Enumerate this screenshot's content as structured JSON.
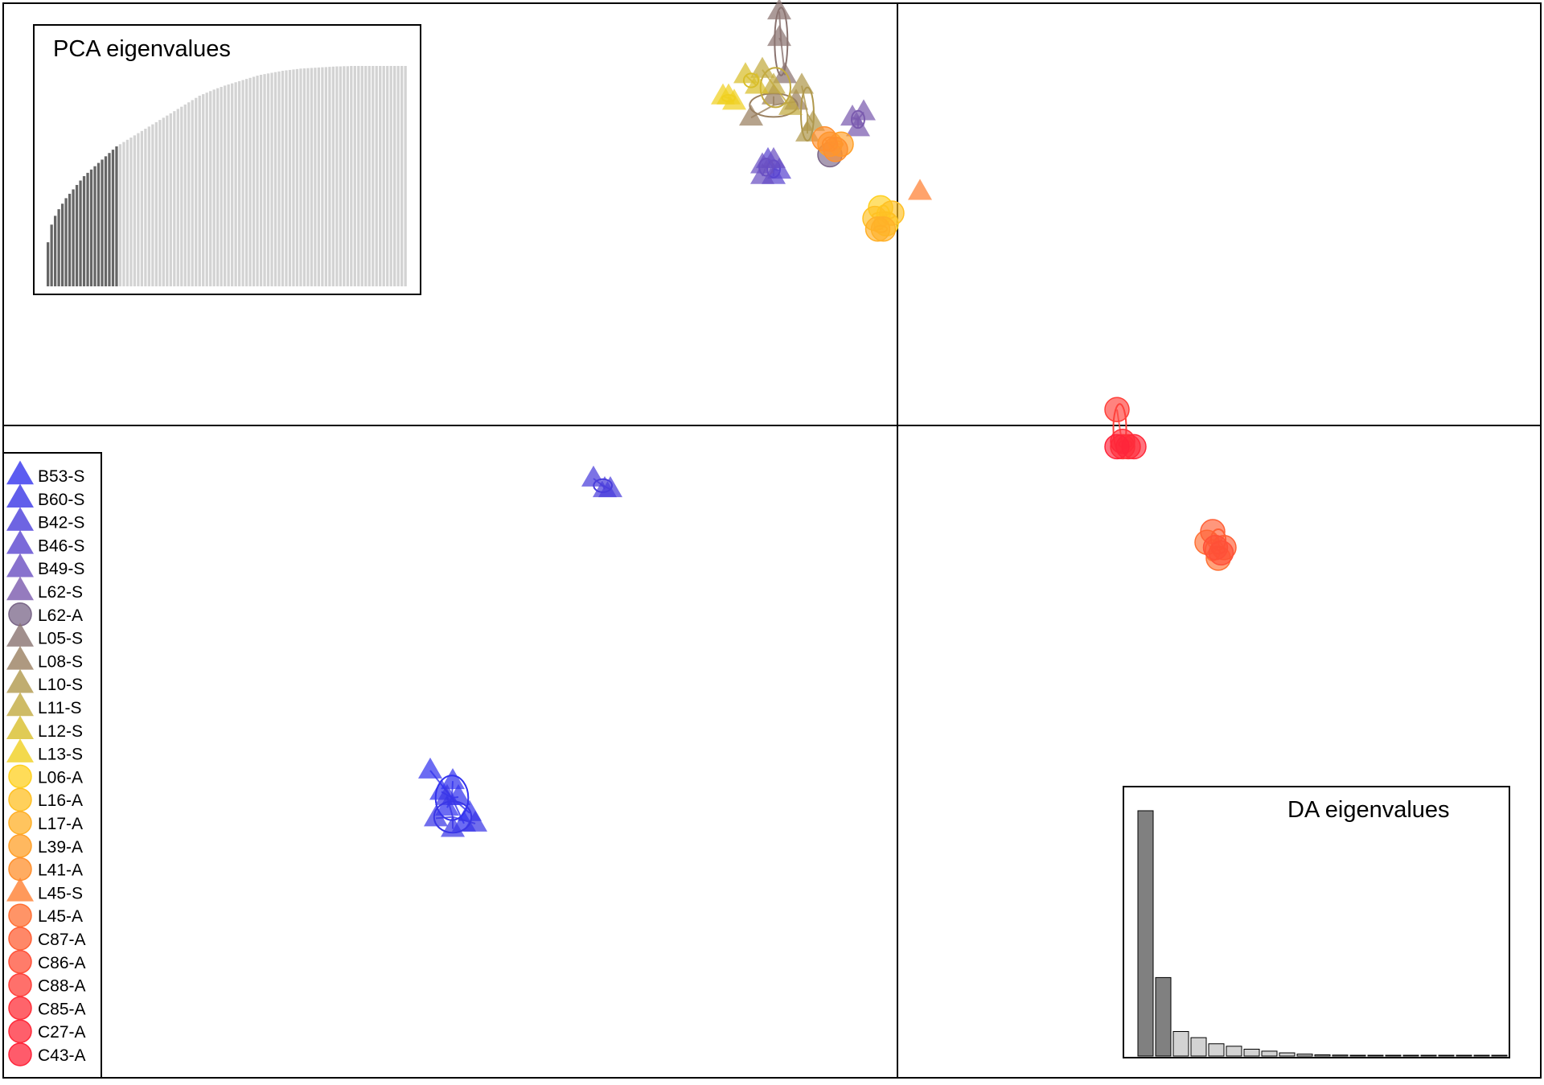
{
  "chart_data": {
    "type": "scatter",
    "description_free": true,
    "pca_inset": {
      "title": "PCA eigenvalues",
      "type": "bar",
      "retained": 20,
      "values": [
        0.2,
        0.28,
        0.32,
        0.35,
        0.375,
        0.4,
        0.42,
        0.44,
        0.46,
        0.48,
        0.5,
        0.515,
        0.53,
        0.545,
        0.56,
        0.575,
        0.59,
        0.605,
        0.62,
        0.635,
        0.645,
        0.655,
        0.665,
        0.675,
        0.685,
        0.695,
        0.705,
        0.715,
        0.725,
        0.735,
        0.745,
        0.755,
        0.765,
        0.775,
        0.785,
        0.795,
        0.805,
        0.815,
        0.825,
        0.835,
        0.845,
        0.855,
        0.865,
        0.872,
        0.879,
        0.886,
        0.893,
        0.899,
        0.905,
        0.911,
        0.916,
        0.921,
        0.926,
        0.931,
        0.936,
        0.941,
        0.946,
        0.951,
        0.956,
        0.96,
        0.963,
        0.966,
        0.969,
        0.972,
        0.975,
        0.978,
        0.98,
        0.982,
        0.984,
        0.986,
        0.988,
        0.989,
        0.99,
        0.991,
        0.992,
        0.993,
        0.994,
        0.995,
        0.996,
        0.997,
        0.998,
        0.998,
        0.999,
        0.999,
        1.0,
        1.0,
        1.0,
        1.0,
        1.0,
        1.0,
        1.0,
        1.0,
        1.0,
        1.0,
        1.0,
        1.0,
        1.0,
        1.0,
        1.0,
        1.0
      ]
    },
    "da_inset": {
      "title": "DA eigenvalues",
      "type": "bar",
      "retained": 2,
      "values": [
        1.0,
        0.32,
        0.1,
        0.075,
        0.05,
        0.04,
        0.028,
        0.02,
        0.013,
        0.008,
        0.005,
        0.004,
        0.003,
        0.002,
        0.0015,
        0.001,
        0.0008,
        0.0006,
        0.0004,
        0.0003,
        0.0002
      ]
    },
    "axes": {
      "x_range": [
        -1,
        1
      ],
      "y_range": [
        -1,
        1
      ],
      "origin_lines": true
    },
    "legend": {
      "placement": "left",
      "entries": [
        {
          "label": "B53-S",
          "color": "#3333ee",
          "shape": "triangle"
        },
        {
          "label": "B60-S",
          "color": "#3a36e6",
          "shape": "triangle"
        },
        {
          "label": "B42-S",
          "color": "#4a3ddb",
          "shape": "triangle"
        },
        {
          "label": "B46-S",
          "color": "#5a45d0",
          "shape": "triangle"
        },
        {
          "label": "B49-S",
          "color": "#6a4fc2",
          "shape": "triangle"
        },
        {
          "label": "L62-S",
          "color": "#7a5aae",
          "shape": "triangle"
        },
        {
          "label": "L62-A",
          "color": "#7a6688",
          "shape": "circle"
        },
        {
          "label": "L05-S",
          "color": "#8a7370",
          "shape": "triangle"
        },
        {
          "label": "L08-S",
          "color": "#9a8060",
          "shape": "triangle"
        },
        {
          "label": "L10-S",
          "color": "#b0984c",
          "shape": "triangle"
        },
        {
          "label": "L11-S",
          "color": "#c2aa40",
          "shape": "triangle"
        },
        {
          "label": "L12-S",
          "color": "#d8be2a",
          "shape": "triangle"
        },
        {
          "label": "L13-S",
          "color": "#f0d020",
          "shape": "triangle"
        },
        {
          "label": "L06-A",
          "color": "#ffd020",
          "shape": "circle"
        },
        {
          "label": "L16-A",
          "color": "#ffc024",
          "shape": "circle"
        },
        {
          "label": "L17-A",
          "color": "#ffb028",
          "shape": "circle"
        },
        {
          "label": "L39-A",
          "color": "#ffa02a",
          "shape": "circle"
        },
        {
          "label": "L41-A",
          "color": "#ff902e",
          "shape": "circle"
        },
        {
          "label": "L45-S",
          "color": "#ff8032",
          "shape": "triangle"
        },
        {
          "label": "L45-A",
          "color": "#ff7034",
          "shape": "circle"
        },
        {
          "label": "C87-A",
          "color": "#ff6036",
          "shape": "circle"
        },
        {
          "label": "C86-A",
          "color": "#ff5038",
          "shape": "circle"
        },
        {
          "label": "C88-A",
          "color": "#ff403a",
          "shape": "circle"
        },
        {
          "label": "C85-A",
          "color": "#ff303a",
          "shape": "circle"
        },
        {
          "label": "C27-A",
          "color": "#ff2a3a",
          "shape": "circle"
        },
        {
          "label": "C43-A",
          "color": "#ff243a",
          "shape": "circle"
        }
      ]
    },
    "series": [
      {
        "group": "B53-S",
        "color": "#3333ee",
        "shape": "triangle",
        "points": [
          [
            -0.83,
            -0.65
          ],
          [
            -0.81,
            -0.69
          ],
          [
            -0.8,
            -0.72
          ],
          [
            -0.78,
            -0.7
          ],
          [
            -0.77,
            -0.75
          ],
          [
            -0.76,
            -0.73
          ],
          [
            -0.79,
            -0.67
          ]
        ]
      },
      {
        "group": "B60-S",
        "color": "#3a36e6",
        "shape": "triangle",
        "points": [
          [
            -0.82,
            -0.74
          ],
          [
            -0.79,
            -0.76
          ],
          [
            -0.75,
            -0.75
          ],
          [
            -0.8,
            -0.7
          ]
        ]
      },
      {
        "group": "B42-S",
        "color": "#4a3ddb",
        "shape": "triangle",
        "points": [
          [
            -0.54,
            -0.1
          ],
          [
            -0.52,
            -0.12
          ],
          [
            -0.51,
            -0.12
          ]
        ]
      },
      {
        "group": "B46-S",
        "color": "#5a45d0",
        "shape": "triangle",
        "points": [
          [
            -0.23,
            0.5
          ],
          [
            -0.22,
            0.47
          ],
          [
            -0.21,
            0.48
          ]
        ]
      },
      {
        "group": "B49-S",
        "color": "#6a4fc2",
        "shape": "triangle",
        "points": [
          [
            -0.24,
            0.49
          ],
          [
            -0.22,
            0.5
          ],
          [
            -0.24,
            0.47
          ]
        ]
      },
      {
        "group": "L62-S",
        "color": "#7a5aae",
        "shape": "triangle",
        "points": [
          [
            -0.07,
            0.56
          ],
          [
            -0.06,
            0.59
          ],
          [
            -0.08,
            0.58
          ]
        ]
      },
      {
        "group": "L62-A",
        "color": "#7a6688",
        "shape": "circle",
        "points": [
          [
            -0.12,
            0.51
          ]
        ]
      },
      {
        "group": "L05-S",
        "color": "#8a7370",
        "shape": "triangle",
        "points": [
          [
            -0.21,
            0.78
          ],
          [
            -0.21,
            0.73
          ],
          [
            -0.2,
            0.66
          ]
        ]
      },
      {
        "group": "L08-S",
        "color": "#9a8060",
        "shape": "triangle",
        "points": [
          [
            -0.26,
            0.58
          ],
          [
            -0.22,
            0.62
          ],
          [
            -0.18,
            0.61
          ]
        ]
      },
      {
        "group": "L10-S",
        "color": "#b0984c",
        "shape": "triangle",
        "points": [
          [
            -0.17,
            0.64
          ],
          [
            -0.15,
            0.57
          ],
          [
            -0.16,
            0.55
          ]
        ]
      },
      {
        "group": "L11-S",
        "color": "#c2aa40",
        "shape": "triangle",
        "points": [
          [
            -0.24,
            0.67
          ],
          [
            -0.22,
            0.64
          ],
          [
            -0.19,
            0.6
          ]
        ]
      },
      {
        "group": "L12-S",
        "color": "#d8be2a",
        "shape": "triangle",
        "points": [
          [
            -0.27,
            0.66
          ],
          [
            -0.25,
            0.64
          ]
        ]
      },
      {
        "group": "L13-S",
        "color": "#f0d020",
        "shape": "triangle",
        "points": [
          [
            -0.31,
            0.62
          ],
          [
            -0.3,
            0.62
          ],
          [
            -0.29,
            0.61
          ]
        ]
      },
      {
        "group": "L06-A",
        "color": "#ffd020",
        "shape": "circle",
        "points": [
          [
            -0.03,
            0.41
          ],
          [
            -0.02,
            0.38
          ]
        ]
      },
      {
        "group": "L16-A",
        "color": "#ffc024",
        "shape": "circle",
        "points": [
          [
            -0.04,
            0.39
          ],
          [
            -0.01,
            0.4
          ]
        ]
      },
      {
        "group": "L17-A",
        "color": "#ffb028",
        "shape": "circle",
        "points": [
          [
            -0.035,
            0.37
          ],
          [
            -0.025,
            0.37
          ]
        ]
      },
      {
        "group": "L39-A",
        "color": "#ffa02a",
        "shape": "circle",
        "points": [
          [
            -0.1,
            0.53
          ],
          [
            -0.12,
            0.53
          ]
        ]
      },
      {
        "group": "L41-A",
        "color": "#ff902e",
        "shape": "circle",
        "points": [
          [
            -0.13,
            0.54
          ],
          [
            -0.11,
            0.52
          ]
        ]
      },
      {
        "group": "L45-S",
        "color": "#ff8032",
        "shape": "triangle",
        "points": [
          [
            0.04,
            0.44
          ]
        ]
      },
      {
        "group": "L45-A",
        "color": "#ff7034",
        "shape": "circle",
        "points": [
          [
            0.55,
            -0.22
          ],
          [
            0.57,
            -0.25
          ]
        ]
      },
      {
        "group": "C87-A",
        "color": "#ff6036",
        "shape": "circle",
        "points": [
          [
            0.56,
            -0.2
          ],
          [
            0.58,
            -0.23
          ]
        ]
      },
      {
        "group": "C86-A",
        "color": "#ff5038",
        "shape": "circle",
        "points": [
          [
            0.575,
            -0.24
          ],
          [
            0.565,
            -0.23
          ]
        ]
      },
      {
        "group": "C88-A",
        "color": "#ff403a",
        "shape": "circle",
        "points": [
          [
            0.39,
            0.03
          ],
          [
            0.4,
            -0.04
          ]
        ]
      },
      {
        "group": "C85-A",
        "color": "#ff303a",
        "shape": "circle",
        "points": [
          [
            0.41,
            -0.04
          ],
          [
            0.4,
            -0.03
          ]
        ]
      },
      {
        "group": "C27-A",
        "color": "#ff2a3a",
        "shape": "circle",
        "points": [
          [
            0.42,
            -0.04
          ]
        ]
      },
      {
        "group": "C43-A",
        "color": "#ff243a",
        "shape": "circle",
        "points": [
          [
            0.39,
            -0.04
          ]
        ]
      }
    ]
  }
}
